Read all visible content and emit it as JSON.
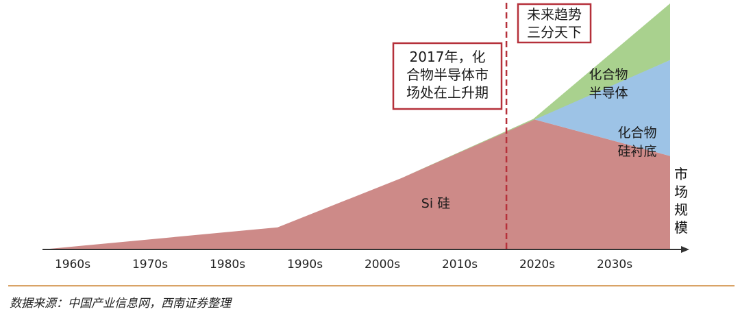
{
  "chart_data": {
    "type": "area",
    "categories": [
      "1960s",
      "1970s",
      "1980s",
      "1990s",
      "2000s",
      "2010s",
      "2020s",
      "2030s"
    ],
    "ylabel": "市场规模",
    "ylim": [
      0,
      100
    ],
    "regions": [
      {
        "label": "Si 硅",
        "color": "#cd8a88",
        "x": [
          0,
          2.7,
          4.3,
          6.0,
          8.1
        ],
        "y": [
          0,
          9,
          29,
          53,
          38
        ]
      },
      {
        "label": "化合物\n硅衬底",
        "color": "#9dc3e6",
        "x": [
          6.0,
          8.1,
          8.1
        ],
        "y": [
          53,
          38,
          77
        ]
      },
      {
        "label": "化合物\n半导体",
        "color": "#a9d18e",
        "x": [
          4.3,
          8.1,
          8.1,
          6.0
        ],
        "y": [
          29,
          77,
          100,
          53
        ]
      }
    ],
    "marker": {
      "x": 5.7,
      "style": "dashed",
      "color": "#b5303a"
    },
    "annotations": [
      {
        "id": "ann-2017",
        "lines": [
          "2017年，化",
          "合物半导体市",
          "场处在上升期"
        ]
      },
      {
        "id": "ann-future",
        "lines": [
          "未来趋势",
          "三分天下"
        ]
      }
    ]
  },
  "source": "数据来源：中国产业信息网，西南证券整理",
  "colors": {
    "axis": "#333333",
    "rule": "#d9a366",
    "annotation_border": "#b5303a"
  }
}
